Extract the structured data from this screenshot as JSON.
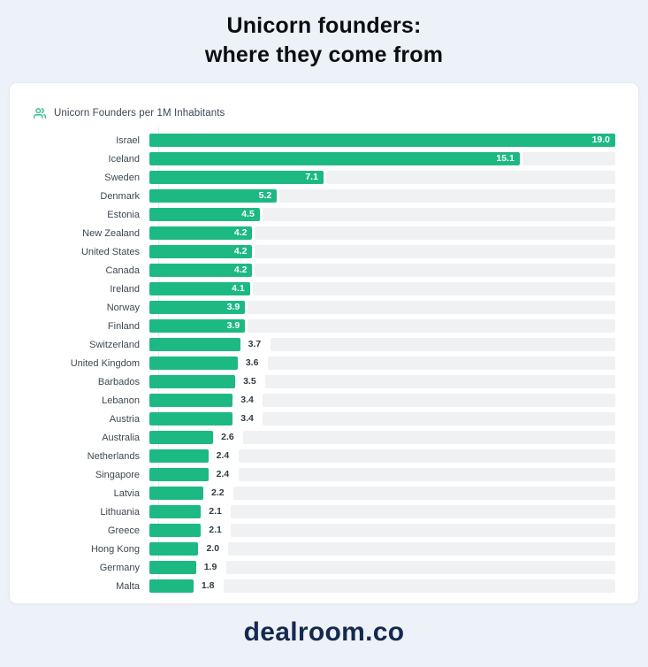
{
  "page": {
    "title_line1": "Unicorn founders:",
    "title_line2": "where they come from",
    "footer": "dealroom.co"
  },
  "legend": {
    "icon": "people-icon",
    "label": "Unicorn Founders per 1M Inhabitants"
  },
  "colors": {
    "bar": "#1DB983",
    "track": "#F0F1F3",
    "page_bg": "#EDF1F8",
    "card_bg": "#FFFFFF",
    "card_border": "#E6E9F0",
    "value_inside_text": "#FFFFFF",
    "value_outside_text": "#303C46",
    "category_label_text": "#3C4854",
    "title_text": "#0A0D12",
    "footer_text": "#16294E",
    "legend_icon": "#34BE8D"
  },
  "chart_data": {
    "type": "bar",
    "orientation": "horizontal",
    "title": "Unicorn Founders per 1M Inhabitants",
    "categories": [
      "Israel",
      "Iceland",
      "Sweden",
      "Denmark",
      "Estonia",
      "New Zealand",
      "United States",
      "Canada",
      "Ireland",
      "Norway",
      "Finland",
      "Switzerland",
      "United Kingdom",
      "Barbados",
      "Lebanon",
      "Austria",
      "Australia",
      "Netherlands",
      "Singapore",
      "Latvia",
      "Lithuania",
      "Greece",
      "Hong Kong",
      "Germany",
      "Malta"
    ],
    "values": [
      19.0,
      15.1,
      7.1,
      5.2,
      4.5,
      4.2,
      4.2,
      4.2,
      4.1,
      3.9,
      3.9,
      3.7,
      3.6,
      3.5,
      3.4,
      3.4,
      2.6,
      2.4,
      2.4,
      2.2,
      2.1,
      2.1,
      2.0,
      1.9,
      1.8
    ],
    "value_decimals": 1,
    "xlim": [
      0,
      19
    ],
    "grid": false,
    "legend_position": "top-left",
    "value_label_inside_threshold": 3.9
  }
}
